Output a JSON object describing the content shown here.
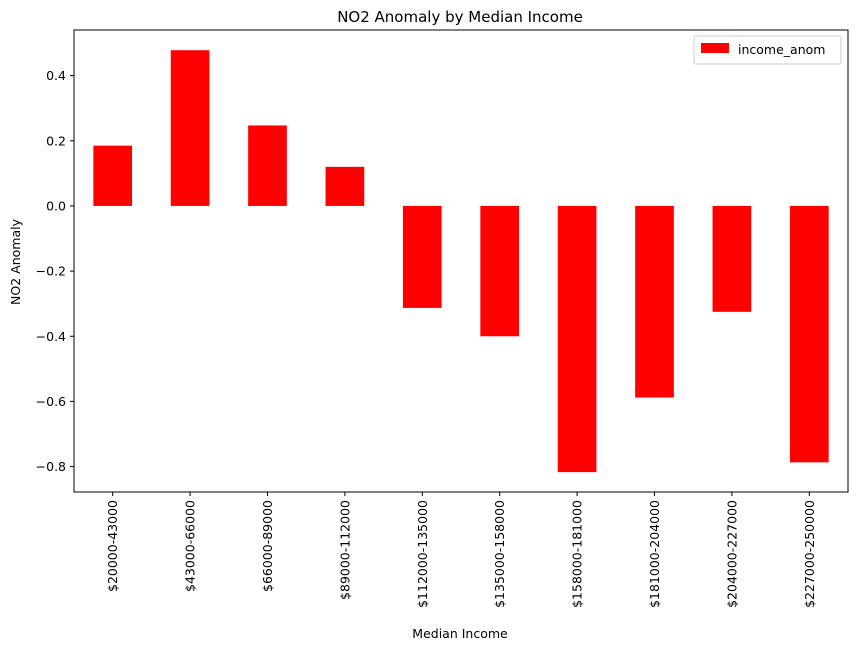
{
  "chart_data": {
    "type": "bar",
    "title": "NO2 Anomaly by Median Income",
    "xlabel": "Median Income",
    "ylabel": "NO2 Anomaly",
    "categories": [
      "$20000-43000",
      "$43000-66000",
      "$66000-89000",
      "$89000-112000",
      "$112000-135000",
      "$135000-158000",
      "$158000-181000",
      "$181000-204000",
      "$204000-227000",
      "$227000-250000"
    ],
    "series": [
      {
        "name": "income_anom",
        "color": "#ff0000",
        "values": [
          0.185,
          0.478,
          0.247,
          0.12,
          -0.313,
          -0.4,
          -0.817,
          -0.588,
          -0.325,
          -0.787
        ]
      }
    ],
    "ylim": [
      -0.878,
      0.54
    ],
    "yticks": [
      -0.8,
      -0.6,
      -0.4,
      -0.2,
      0.0,
      0.2,
      0.4
    ],
    "ytick_labels": [
      "−0.8",
      "−0.6",
      "−0.4",
      "−0.2",
      "0.0",
      "0.2",
      "0.4"
    ],
    "legend_position": "top-right",
    "grid": false
  }
}
